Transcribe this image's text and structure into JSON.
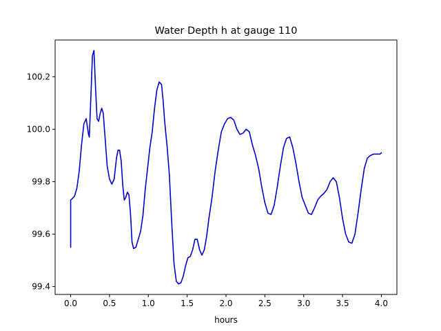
{
  "chart_data": {
    "type": "line",
    "title": "Water Depth h at gauge 110",
    "xlabel": "hours",
    "ylabel": "",
    "xlim": [
      -0.2,
      4.2
    ],
    "ylim": [
      99.37,
      100.34
    ],
    "xticks": [
      0.0,
      0.5,
      1.0,
      1.5,
      2.0,
      2.5,
      3.0,
      3.5,
      4.0
    ],
    "xtick_labels": [
      "0.0",
      "0.5",
      "1.0",
      "1.5",
      "2.0",
      "2.5",
      "3.0",
      "3.5",
      "4.0"
    ],
    "yticks": [
      99.4,
      99.6,
      99.8,
      100.0,
      100.2
    ],
    "ytick_labels": [
      "99.4",
      "99.6",
      "99.8",
      "100.0",
      "100.2"
    ],
    "grid": false,
    "series": [
      {
        "color": "#0000cc",
        "x": [
          0.0,
          0.0,
          0.02,
          0.05,
          0.08,
          0.11,
          0.14,
          0.17,
          0.2,
          0.23,
          0.24,
          0.26,
          0.28,
          0.3,
          0.32,
          0.34,
          0.36,
          0.38,
          0.4,
          0.42,
          0.44,
          0.47,
          0.5,
          0.53,
          0.56,
          0.59,
          0.61,
          0.63,
          0.65,
          0.67,
          0.69,
          0.71,
          0.73,
          0.75,
          0.77,
          0.79,
          0.81,
          0.84,
          0.87,
          0.9,
          0.93,
          0.96,
          0.99,
          1.02,
          1.05,
          1.08,
          1.11,
          1.14,
          1.17,
          1.19,
          1.21,
          1.24,
          1.27,
          1.3,
          1.33,
          1.36,
          1.39,
          1.42,
          1.45,
          1.48,
          1.51,
          1.54,
          1.57,
          1.6,
          1.63,
          1.66,
          1.69,
          1.72,
          1.75,
          1.78,
          1.82,
          1.86,
          1.9,
          1.94,
          1.98,
          2.02,
          2.06,
          2.1,
          2.14,
          2.18,
          2.22,
          2.26,
          2.3,
          2.34,
          2.38,
          2.42,
          2.46,
          2.5,
          2.54,
          2.58,
          2.62,
          2.66,
          2.7,
          2.74,
          2.78,
          2.82,
          2.86,
          2.9,
          2.94,
          2.98,
          3.02,
          3.06,
          3.1,
          3.14,
          3.18,
          3.22,
          3.26,
          3.3,
          3.34,
          3.38,
          3.42,
          3.46,
          3.5,
          3.54,
          3.58,
          3.62,
          3.66,
          3.7,
          3.74,
          3.78,
          3.82,
          3.86,
          3.9,
          3.94,
          3.98,
          4.0
        ],
        "y": [
          99.55,
          99.73,
          99.735,
          99.745,
          99.775,
          99.84,
          99.94,
          100.02,
          100.04,
          99.98,
          99.97,
          100.12,
          100.28,
          100.3,
          100.16,
          100.04,
          100.03,
          100.06,
          100.08,
          100.06,
          99.98,
          99.86,
          99.81,
          99.79,
          99.81,
          99.89,
          99.92,
          99.92,
          99.88,
          99.79,
          99.73,
          99.74,
          99.76,
          99.75,
          99.68,
          99.57,
          99.545,
          99.55,
          99.58,
          99.61,
          99.67,
          99.77,
          99.85,
          99.93,
          99.99,
          100.08,
          100.15,
          100.18,
          100.17,
          100.11,
          100.03,
          99.94,
          99.83,
          99.65,
          99.49,
          99.42,
          99.41,
          99.415,
          99.44,
          99.48,
          99.51,
          99.515,
          99.54,
          99.58,
          99.58,
          99.54,
          99.52,
          99.54,
          99.59,
          99.66,
          99.74,
          99.84,
          99.92,
          99.99,
          100.02,
          100.04,
          100.045,
          100.035,
          100.0,
          99.98,
          99.985,
          100.0,
          99.99,
          99.94,
          99.9,
          99.85,
          99.78,
          99.72,
          99.68,
          99.675,
          99.71,
          99.78,
          99.86,
          99.93,
          99.965,
          99.97,
          99.93,
          99.87,
          99.8,
          99.74,
          99.71,
          99.68,
          99.675,
          99.7,
          99.73,
          99.745,
          99.755,
          99.77,
          99.8,
          99.815,
          99.8,
          99.74,
          99.66,
          99.6,
          99.57,
          99.565,
          99.6,
          99.68,
          99.77,
          99.85,
          99.89,
          99.9,
          99.905,
          99.905,
          99.905,
          99.91
        ]
      }
    ]
  }
}
